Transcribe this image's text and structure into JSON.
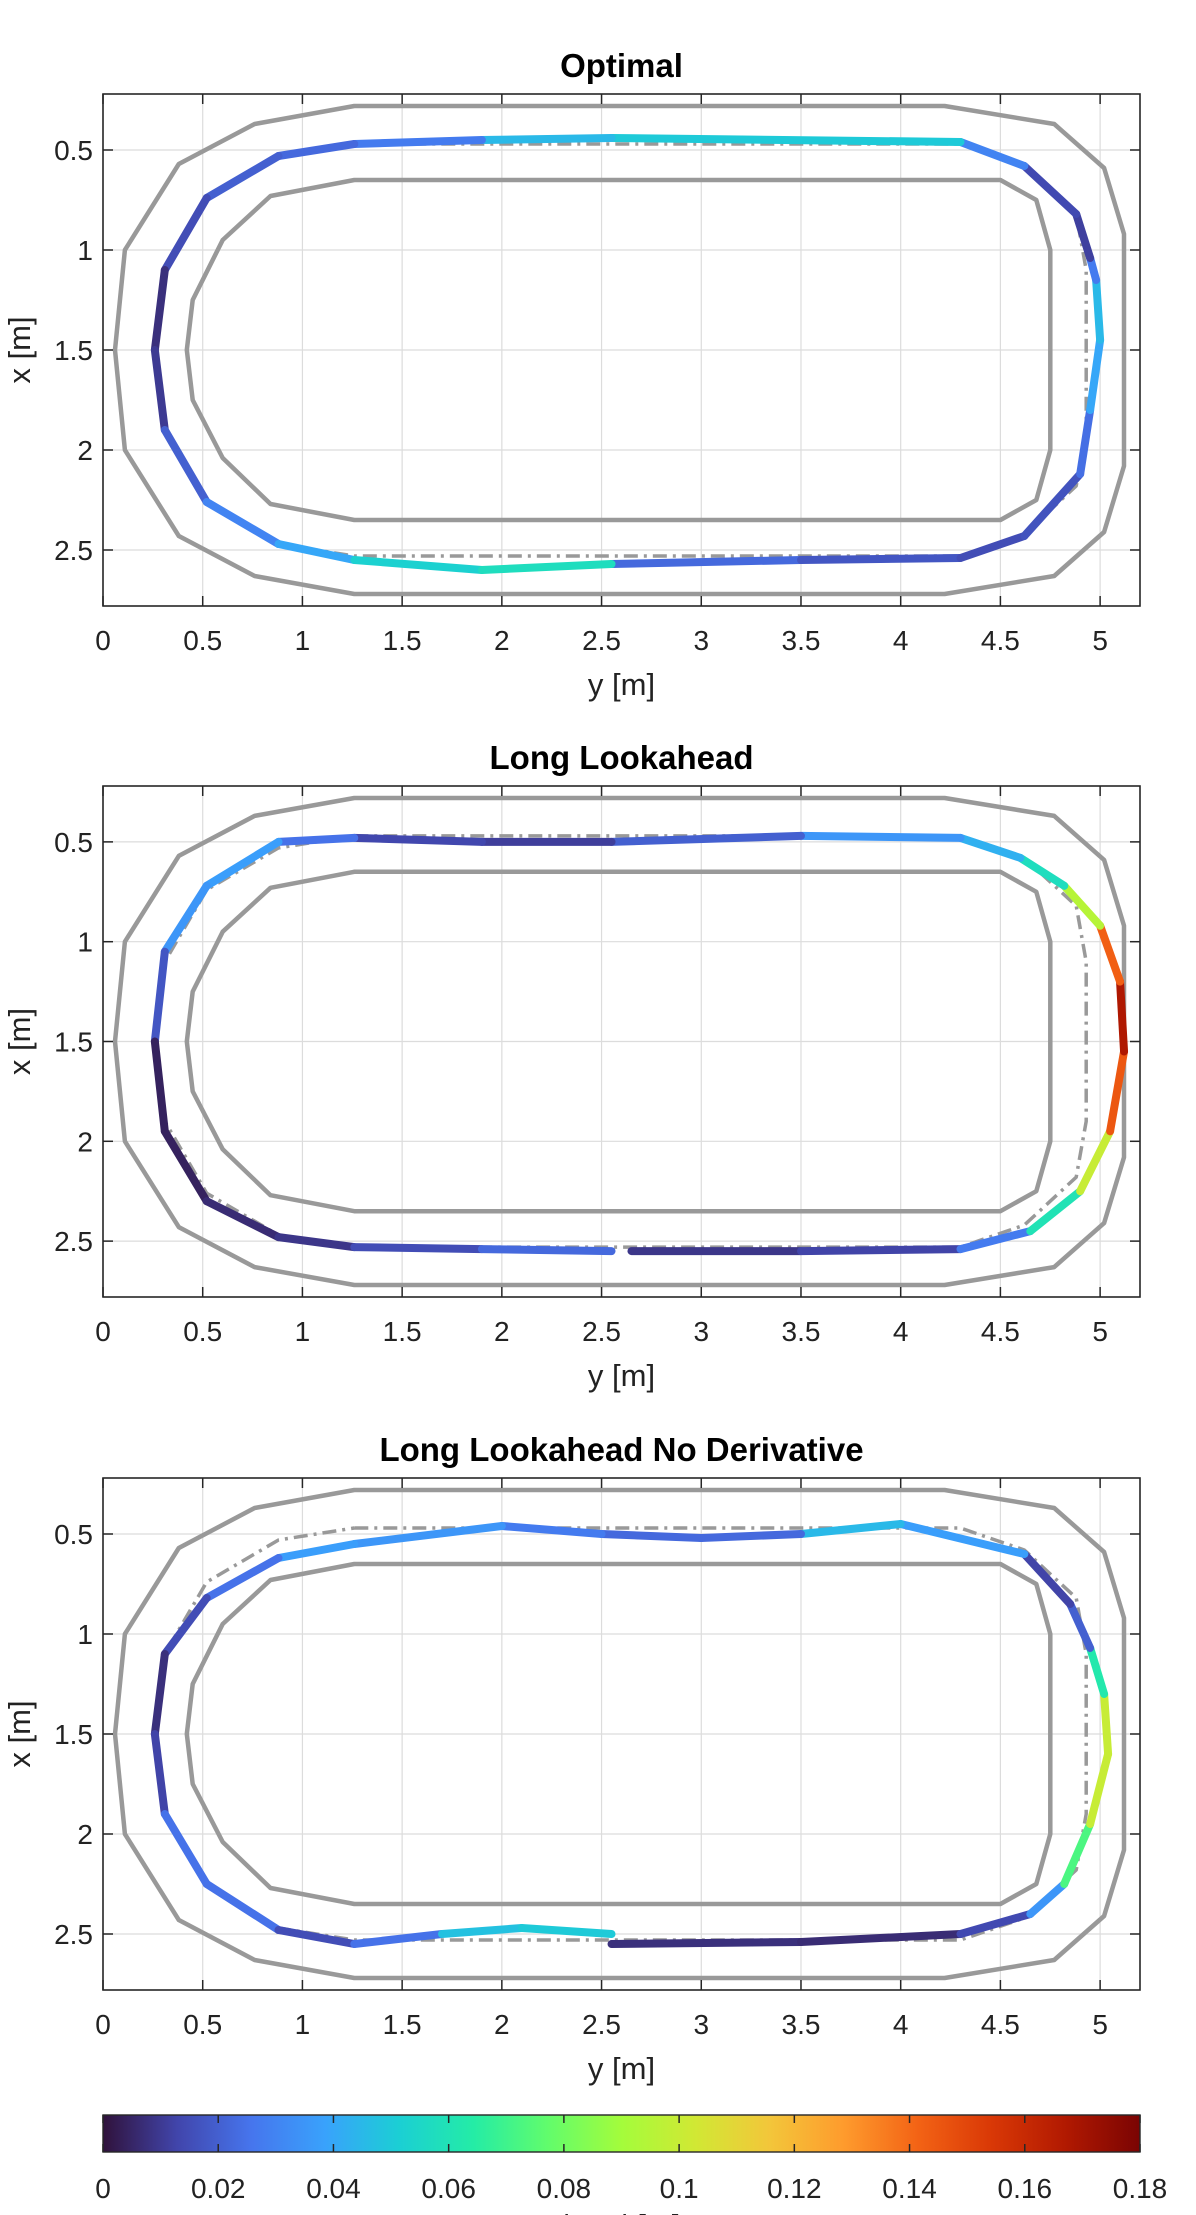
{
  "chart_data": [
    {
      "type": "line",
      "title": "Optimal",
      "xlabel": "y [m]",
      "ylabel": "x [m]",
      "xlim": [
        0,
        5.2
      ],
      "ylim": [
        0.22,
        2.78
      ],
      "y_reversed": true,
      "grid": true,
      "xticks": [
        0,
        0.5,
        1,
        1.5,
        2,
        2.5,
        3,
        3.5,
        4,
        4.5,
        5
      ],
      "xtick_labels": [
        "0",
        "0.5",
        "1",
        "1.5",
        "2",
        "2.5",
        "3",
        "3.5",
        "4",
        "4.5",
        "5"
      ],
      "yticks": [
        0.5,
        1,
        1.5,
        2,
        2.5
      ],
      "ytick_labels": [
        "0.5",
        "1",
        "1.5",
        "2",
        "2.5"
      ],
      "series": [
        {
          "name": "track-outer-boundary",
          "color": "#999999",
          "style": "solid",
          "x": [
            1.26,
            4.2,
            4.22,
            4.77,
            5.02,
            5.12,
            5.12,
            5.02,
            4.77,
            4.22,
            1.26,
            0.76,
            0.38,
            0.11,
            0.06,
            0.11,
            0.38,
            0.76,
            1.26
          ],
          "y": [
            0.28,
            0.28,
            0.28,
            0.37,
            0.59,
            0.92,
            2.08,
            2.41,
            2.63,
            2.72,
            2.72,
            2.63,
            2.43,
            2.0,
            1.5,
            1.0,
            0.57,
            0.37,
            0.28
          ]
        },
        {
          "name": "track-inner-boundary",
          "color": "#999999",
          "style": "solid",
          "x": [
            1.26,
            4.5,
            4.68,
            4.75,
            4.75,
            4.68,
            4.5,
            1.26,
            0.84,
            0.6,
            0.45,
            0.42,
            0.45,
            0.6,
            0.84,
            1.26
          ],
          "y": [
            0.65,
            0.65,
            0.75,
            1.0,
            2.0,
            2.25,
            2.35,
            2.35,
            2.27,
            2.04,
            1.75,
            1.5,
            1.25,
            0.95,
            0.73,
            0.65
          ]
        },
        {
          "name": "reference-line",
          "color": "#999999",
          "style": "dashdot",
          "x": [
            1.26,
            4.3,
            4.62,
            4.88,
            4.93,
            4.93,
            4.88,
            4.62,
            4.3,
            1.26,
            0.88,
            0.52,
            0.31,
            0.26,
            0.31,
            0.52,
            0.88,
            1.26
          ],
          "y": [
            0.47,
            0.47,
            0.58,
            0.82,
            1.1,
            1.9,
            2.18,
            2.42,
            2.53,
            2.53,
            2.47,
            2.26,
            1.9,
            1.5,
            1.1,
            0.74,
            0.53,
            0.47
          ]
        },
        {
          "name": "trajectory",
          "colored_by": "speed error",
          "x": [
            2.55,
            3.5,
            4.3,
            4.62,
            4.9,
            4.95,
            5.0,
            4.98,
            4.95,
            4.88,
            4.62,
            4.3,
            2.55,
            1.9,
            1.26,
            0.88,
            0.52,
            0.31,
            0.26,
            0.31,
            0.52,
            0.88,
            1.26,
            1.9,
            2.55
          ],
          "y": [
            2.57,
            2.55,
            2.54,
            2.43,
            2.12,
            1.8,
            1.45,
            1.15,
            1.04,
            0.82,
            0.58,
            0.46,
            0.44,
            0.45,
            0.47,
            0.53,
            0.74,
            1.1,
            1.5,
            1.9,
            2.26,
            2.47,
            2.55,
            2.6,
            2.57
          ],
          "c": [
            0.025,
            0.02,
            0.015,
            0.015,
            0.018,
            0.03,
            0.05,
            0.04,
            0.015,
            0.008,
            0.02,
            0.04,
            0.06,
            0.03,
            0.025,
            0.02,
            0.02,
            0.01,
            0.005,
            0.015,
            0.025,
            0.035,
            0.045,
            0.06,
            0.055
          ]
        }
      ]
    },
    {
      "type": "line",
      "title": "Long Lookahead",
      "xlabel": "y [m]",
      "ylabel": "x [m]",
      "xlim": [
        0,
        5.2
      ],
      "ylim": [
        0.22,
        2.78
      ],
      "y_reversed": true,
      "grid": true,
      "xticks": [
        0,
        0.5,
        1,
        1.5,
        2,
        2.5,
        3,
        3.5,
        4,
        4.5,
        5
      ],
      "xtick_labels": [
        "0",
        "0.5",
        "1",
        "1.5",
        "2",
        "2.5",
        "3",
        "3.5",
        "4",
        "4.5",
        "5"
      ],
      "yticks": [
        0.5,
        1,
        1.5,
        2,
        2.5
      ],
      "ytick_labels": [
        "0.5",
        "1",
        "1.5",
        "2",
        "2.5"
      ],
      "series": [
        {
          "name": "track-outer-boundary",
          "color": "#999999",
          "style": "solid",
          "x": [
            1.26,
            4.2,
            4.22,
            4.77,
            5.02,
            5.12,
            5.12,
            5.02,
            4.77,
            4.22,
            1.26,
            0.76,
            0.38,
            0.11,
            0.06,
            0.11,
            0.38,
            0.76,
            1.26
          ],
          "y": [
            0.28,
            0.28,
            0.28,
            0.37,
            0.59,
            0.92,
            2.08,
            2.41,
            2.63,
            2.72,
            2.72,
            2.63,
            2.43,
            2.0,
            1.5,
            1.0,
            0.57,
            0.37,
            0.28
          ]
        },
        {
          "name": "track-inner-boundary",
          "color": "#999999",
          "style": "solid",
          "x": [
            1.26,
            4.5,
            4.68,
            4.75,
            4.75,
            4.68,
            4.5,
            1.26,
            0.84,
            0.6,
            0.45,
            0.42,
            0.45,
            0.6,
            0.84,
            1.26
          ],
          "y": [
            0.65,
            0.65,
            0.75,
            1.0,
            2.0,
            2.25,
            2.35,
            2.35,
            2.27,
            2.04,
            1.75,
            1.5,
            1.25,
            0.95,
            0.73,
            0.65
          ]
        },
        {
          "name": "reference-line",
          "color": "#999999",
          "style": "dashdot",
          "x": [
            1.26,
            4.3,
            4.62,
            4.88,
            4.93,
            4.93,
            4.88,
            4.62,
            4.3,
            1.26,
            0.88,
            0.52,
            0.31,
            0.26,
            0.31,
            0.52,
            0.88,
            1.26
          ],
          "y": [
            0.47,
            0.47,
            0.58,
            0.82,
            1.1,
            1.9,
            2.18,
            2.42,
            2.53,
            2.53,
            2.47,
            2.26,
            1.9,
            1.5,
            1.1,
            0.74,
            0.53,
            0.47
          ]
        },
        {
          "name": "trajectory",
          "colored_by": "speed error",
          "x": [
            2.65,
            3.5,
            4.3,
            4.65,
            4.9,
            5.05,
            5.12,
            5.1,
            5.0,
            4.82,
            4.6,
            4.3,
            3.5,
            2.55,
            1.9,
            1.26,
            0.88,
            0.52,
            0.31,
            0.26,
            0.31,
            0.52,
            0.88,
            1.26,
            1.9,
            2.55
          ],
          "y": [
            2.55,
            2.55,
            2.54,
            2.45,
            2.25,
            1.95,
            1.55,
            1.2,
            0.92,
            0.72,
            0.58,
            0.48,
            0.47,
            0.5,
            0.5,
            0.48,
            0.5,
            0.72,
            1.05,
            1.5,
            1.95,
            2.3,
            2.48,
            2.53,
            2.54,
            2.55
          ],
          "c": [
            0.008,
            0.01,
            0.015,
            0.04,
            0.08,
            0.12,
            0.17,
            0.165,
            0.12,
            0.07,
            0.045,
            0.04,
            0.03,
            0.01,
            0.012,
            0.015,
            0.035,
            0.04,
            0.03,
            0.005,
            0.003,
            0.005,
            0.008,
            0.01,
            0.02,
            0.025
          ]
        }
      ]
    },
    {
      "type": "line",
      "title": "Long Lookahead No Derivative",
      "xlabel": "y [m]",
      "ylabel": "x [m]",
      "xlim": [
        0,
        5.2
      ],
      "ylim": [
        0.22,
        2.78
      ],
      "y_reversed": true,
      "grid": true,
      "xticks": [
        0,
        0.5,
        1,
        1.5,
        2,
        2.5,
        3,
        3.5,
        4,
        4.5,
        5
      ],
      "xtick_labels": [
        "0",
        "0.5",
        "1",
        "1.5",
        "2",
        "2.5",
        "3",
        "3.5",
        "4",
        "4.5",
        "5"
      ],
      "yticks": [
        0.5,
        1,
        1.5,
        2,
        2.5
      ],
      "ytick_labels": [
        "0.5",
        "1",
        "1.5",
        "2",
        "2.5"
      ],
      "series": [
        {
          "name": "track-outer-boundary",
          "color": "#999999",
          "style": "solid",
          "x": [
            1.26,
            4.2,
            4.22,
            4.77,
            5.02,
            5.12,
            5.12,
            5.02,
            4.77,
            4.22,
            1.26,
            0.76,
            0.38,
            0.11,
            0.06,
            0.11,
            0.38,
            0.76,
            1.26
          ],
          "y": [
            0.28,
            0.28,
            0.28,
            0.37,
            0.59,
            0.92,
            2.08,
            2.41,
            2.63,
            2.72,
            2.72,
            2.63,
            2.43,
            2.0,
            1.5,
            1.0,
            0.57,
            0.37,
            0.28
          ]
        },
        {
          "name": "track-inner-boundary",
          "color": "#999999",
          "style": "solid",
          "x": [
            1.26,
            4.5,
            4.68,
            4.75,
            4.75,
            4.68,
            4.5,
            1.26,
            0.84,
            0.6,
            0.45,
            0.42,
            0.45,
            0.6,
            0.84,
            1.26
          ],
          "y": [
            0.65,
            0.65,
            0.75,
            1.0,
            2.0,
            2.25,
            2.35,
            2.35,
            2.27,
            2.04,
            1.75,
            1.5,
            1.25,
            0.95,
            0.73,
            0.65
          ]
        },
        {
          "name": "reference-line",
          "color": "#999999",
          "style": "dashdot",
          "x": [
            1.26,
            4.3,
            4.62,
            4.88,
            4.93,
            4.93,
            4.88,
            4.62,
            4.3,
            1.26,
            0.88,
            0.52,
            0.31,
            0.26,
            0.31,
            0.52,
            0.88,
            1.26
          ],
          "y": [
            0.47,
            0.47,
            0.58,
            0.82,
            1.1,
            1.9,
            2.18,
            2.42,
            2.53,
            2.53,
            2.47,
            2.26,
            1.9,
            1.5,
            1.1,
            0.74,
            0.53,
            0.47
          ]
        },
        {
          "name": "trajectory",
          "colored_by": "speed error",
          "x": [
            2.55,
            3.5,
            4.3,
            4.65,
            4.82,
            4.95,
            5.04,
            5.02,
            4.95,
            4.85,
            4.62,
            4.0,
            3.5,
            3.0,
            2.5,
            2.0,
            1.26,
            0.88,
            0.52,
            0.31,
            0.26,
            0.31,
            0.52,
            0.88,
            1.26,
            1.7,
            2.1,
            2.55
          ],
          "y": [
            2.55,
            2.54,
            2.5,
            2.4,
            2.25,
            1.95,
            1.6,
            1.3,
            1.07,
            0.85,
            0.6,
            0.45,
            0.5,
            0.52,
            0.5,
            0.46,
            0.55,
            0.62,
            0.82,
            1.1,
            1.5,
            1.9,
            2.25,
            2.48,
            2.55,
            2.5,
            2.47,
            2.5
          ],
          "c": [
            0.01,
            0.005,
            0.008,
            0.02,
            0.05,
            0.095,
            0.105,
            0.095,
            0.03,
            0.01,
            0.015,
            0.06,
            0.03,
            0.015,
            0.03,
            0.025,
            0.045,
            0.03,
            0.02,
            0.01,
            0.005,
            0.02,
            0.03,
            0.02,
            0.01,
            0.04,
            0.055,
            0.045
          ]
        }
      ]
    }
  ],
  "colorbar": {
    "colormap": "turbo",
    "range": [
      0,
      0.18
    ],
    "ticks": [
      0,
      0.02,
      0.04,
      0.06,
      0.08,
      0.1,
      0.12,
      0.14,
      0.16,
      0.18
    ],
    "tick_labels": [
      "0",
      "0.02",
      "0.04",
      "0.06",
      "0.08",
      "0.1",
      "0.12",
      "0.14",
      "0.16",
      "0.18"
    ],
    "colors": [
      "#30123b",
      "#4145ab",
      "#4675ed",
      "#39a2fc",
      "#1bcfd4",
      "#24eca6",
      "#61fc6c",
      "#a4fc3b",
      "#d1e834",
      "#f3c63a",
      "#fe9b2d",
      "#f36315",
      "#d93806",
      "#b11901",
      "#7a0403"
    ],
    "label": "|e_x| [m]"
  }
}
